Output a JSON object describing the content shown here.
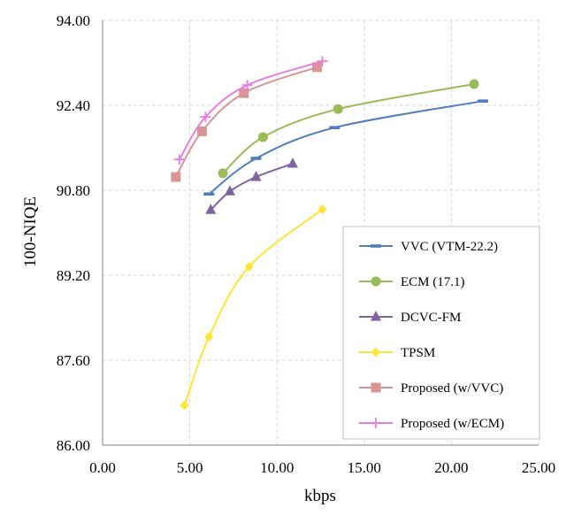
{
  "chart_data": {
    "type": "line",
    "title": "",
    "xlabel": "kbps",
    "ylabel": "100-NIQE",
    "xlim": [
      0,
      25
    ],
    "ylim": [
      86,
      94
    ],
    "xticks": [
      "0.00",
      "5.00",
      "10.00",
      "15.00",
      "20.00",
      "25.00"
    ],
    "yticks": [
      "86.00",
      "87.60",
      "89.20",
      "90.80",
      "92.40",
      "94.00"
    ],
    "grid": true,
    "legend_position": "right",
    "series": [
      {
        "name": "VVC (VTM-22.2)",
        "color": "#4F7EBE",
        "marker": "dash",
        "x": [
          6.1,
          8.8,
          13.3,
          21.8
        ],
        "y": [
          90.73,
          91.4,
          91.98,
          92.48
        ]
      },
      {
        "name": "ECM (17.1)",
        "color": "#9BBB59",
        "marker": "circle",
        "x": [
          6.9,
          9.2,
          13.5,
          21.3
        ],
        "y": [
          91.12,
          91.8,
          92.33,
          92.8
        ]
      },
      {
        "name": "DCVC-FM",
        "color": "#8064A2",
        "marker": "triangle",
        "x": [
          6.2,
          7.3,
          8.8,
          10.9
        ],
        "y": [
          90.43,
          90.78,
          91.05,
          91.3
        ]
      },
      {
        "name": "TPSM",
        "color": "#FFE533",
        "marker": "diamond",
        "x": [
          4.7,
          6.1,
          8.4,
          12.6
        ],
        "y": [
          86.75,
          88.04,
          89.36,
          90.44
        ]
      },
      {
        "name": "Proposed (w/VVC)",
        "color": "#D99594",
        "marker": "square",
        "x": [
          4.2,
          5.7,
          8.1,
          12.3
        ],
        "y": [
          91.05,
          91.91,
          92.63,
          93.12
        ]
      },
      {
        "name": "Proposed (w/ECM)",
        "color": "#E87DDD",
        "marker": "plus",
        "x": [
          4.4,
          5.9,
          8.3,
          12.6
        ],
        "y": [
          91.38,
          92.18,
          92.78,
          93.23
        ]
      }
    ]
  }
}
